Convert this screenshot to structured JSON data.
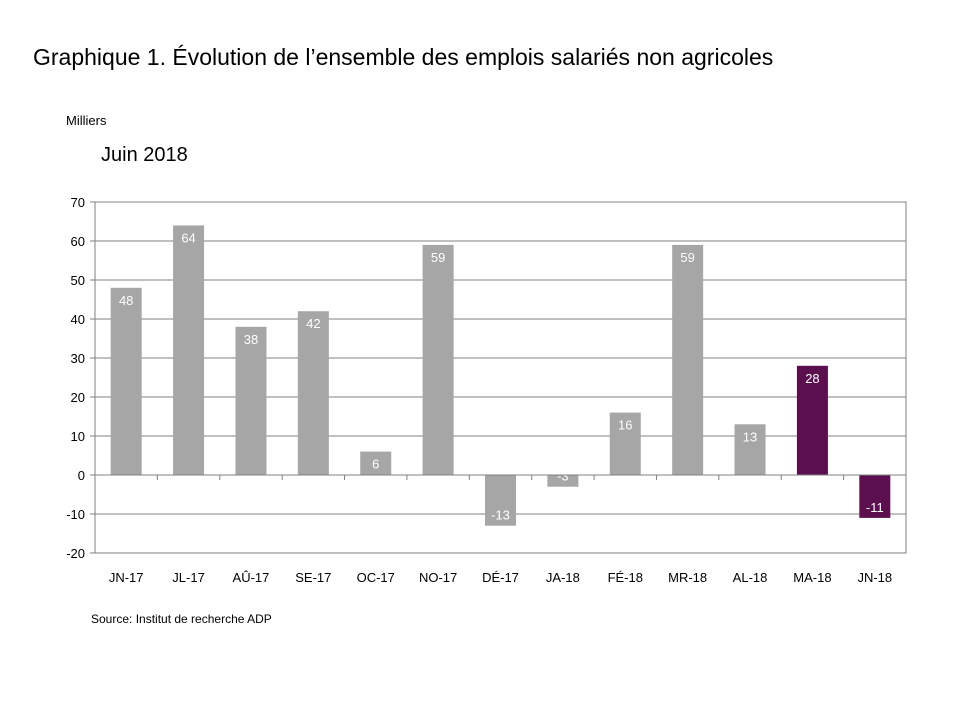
{
  "title": "Graphique 1. Évolution de l’ensemble des emplois salariés non agricoles",
  "unit_label": "Milliers",
  "subtitle": "Juin 2018",
  "source": "Source: Institut de recherche ADP",
  "colors": {
    "bar_default": "#a6a6a6",
    "bar_highlight": "#5c0f4f",
    "grid": "#808080",
    "label_on_bar": "#ffffff"
  },
  "chart_data": {
    "type": "bar",
    "categories": [
      "JN-17",
      "JL-17",
      "AÛ-17",
      "SE-17",
      "OC-17",
      "NO-17",
      "DÉ-17",
      "JA-18",
      "FÉ-18",
      "MR-18",
      "AL-18",
      "MA-18",
      "JN-18"
    ],
    "values": [
      48,
      64,
      38,
      42,
      6,
      59,
      -13,
      -3,
      16,
      59,
      13,
      28,
      -11
    ],
    "data_labels": [
      "48",
      "64",
      "38",
      "42",
      "6",
      "59",
      "-13",
      "-3",
      "16",
      "59",
      "13",
      "28",
      "-11"
    ],
    "highlighted": [
      "MA-18",
      "JN-18"
    ],
    "title": "Juin 2018",
    "ylabel": "Milliers",
    "ylim": [
      -20,
      70
    ],
    "yticks": [
      70,
      60,
      50,
      40,
      30,
      20,
      10,
      0,
      -10,
      -20
    ],
    "grid": true,
    "legend": false
  }
}
